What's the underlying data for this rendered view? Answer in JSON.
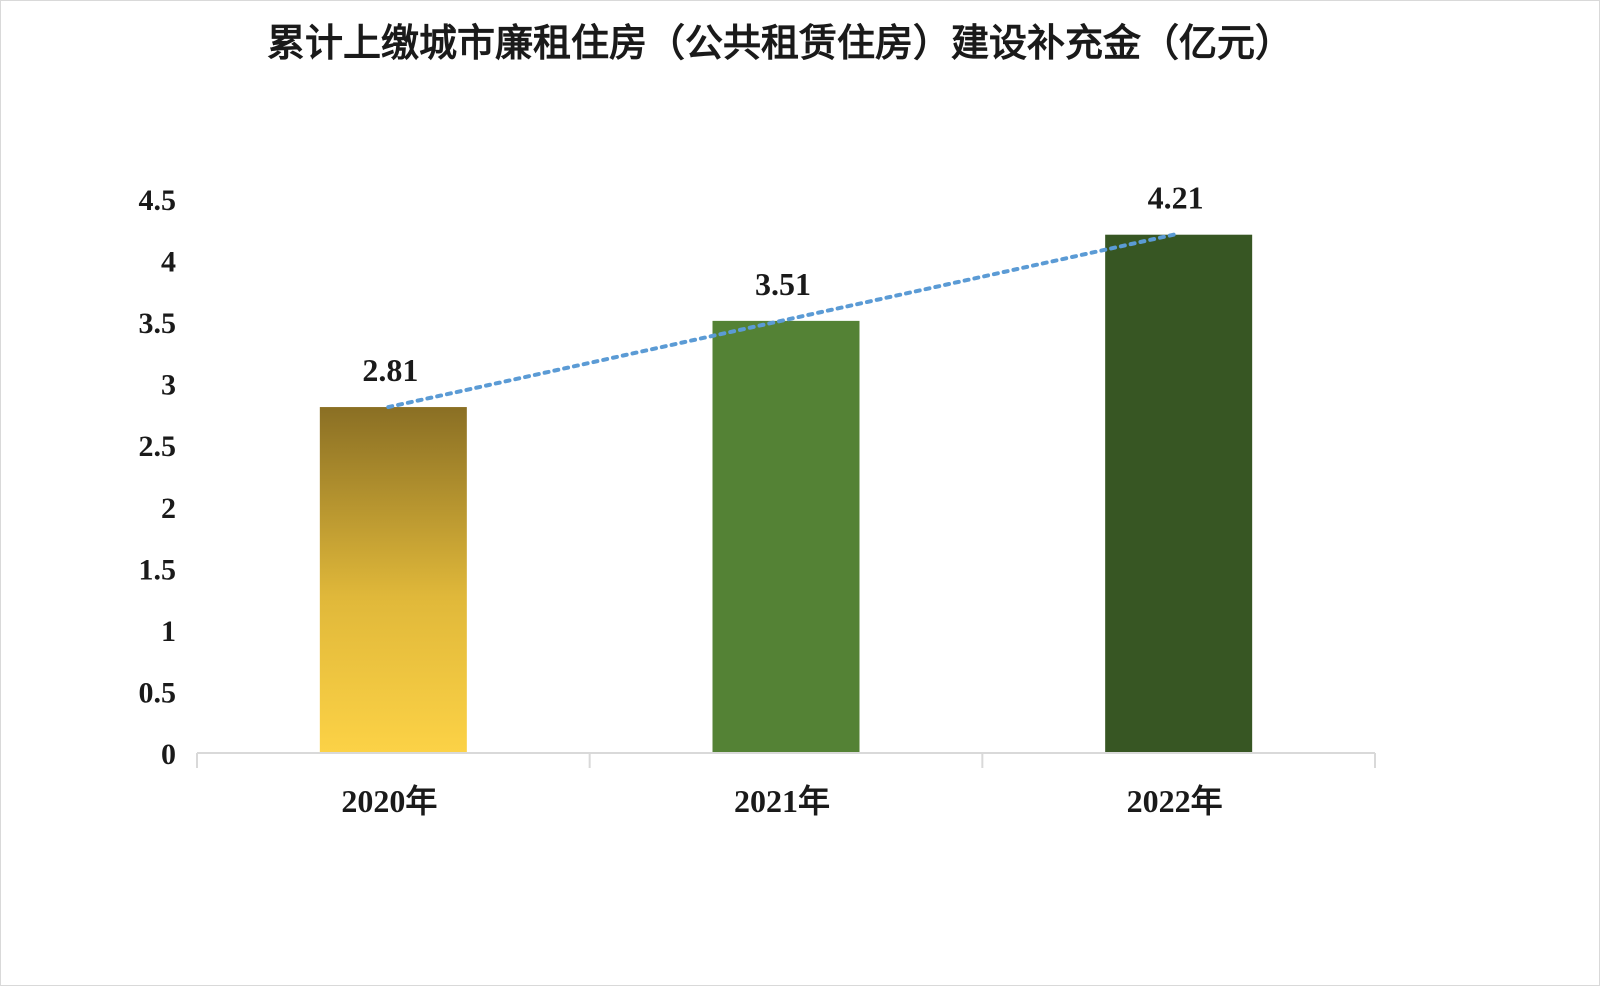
{
  "chart_data": {
    "type": "bar",
    "title": "累计上缴城市廉租住房（公共租赁住房）建设补充金（亿元）",
    "categories": [
      "2020年",
      "2021年",
      "2022年"
    ],
    "values": [
      2.81,
      3.51,
      4.21
    ],
    "data_labels": [
      "2.81",
      "3.51",
      "4.21"
    ],
    "ylim": [
      0,
      4.5
    ],
    "yticks": [
      0,
      0.5,
      1,
      1.5,
      2,
      2.5,
      3,
      3.5,
      4,
      4.5
    ],
    "ytick_labels": [
      "0",
      "0.5",
      "1",
      "1.5",
      "2",
      "2.5",
      "3",
      "3.5",
      "4",
      "4.5"
    ],
    "xlabel": "",
    "ylabel": "",
    "grid": false,
    "legend": "none",
    "trendline": "linear",
    "colors": {
      "bar_2020_top": "#8a6f24",
      "bar_2020_mid": "#e0b83a",
      "bar_2020_bottom": "#fcd246",
      "bar_2021": "#548235",
      "bar_2022": "#375623",
      "trendline": "#5b9bd5",
      "axis": "#d9d9d9"
    }
  }
}
